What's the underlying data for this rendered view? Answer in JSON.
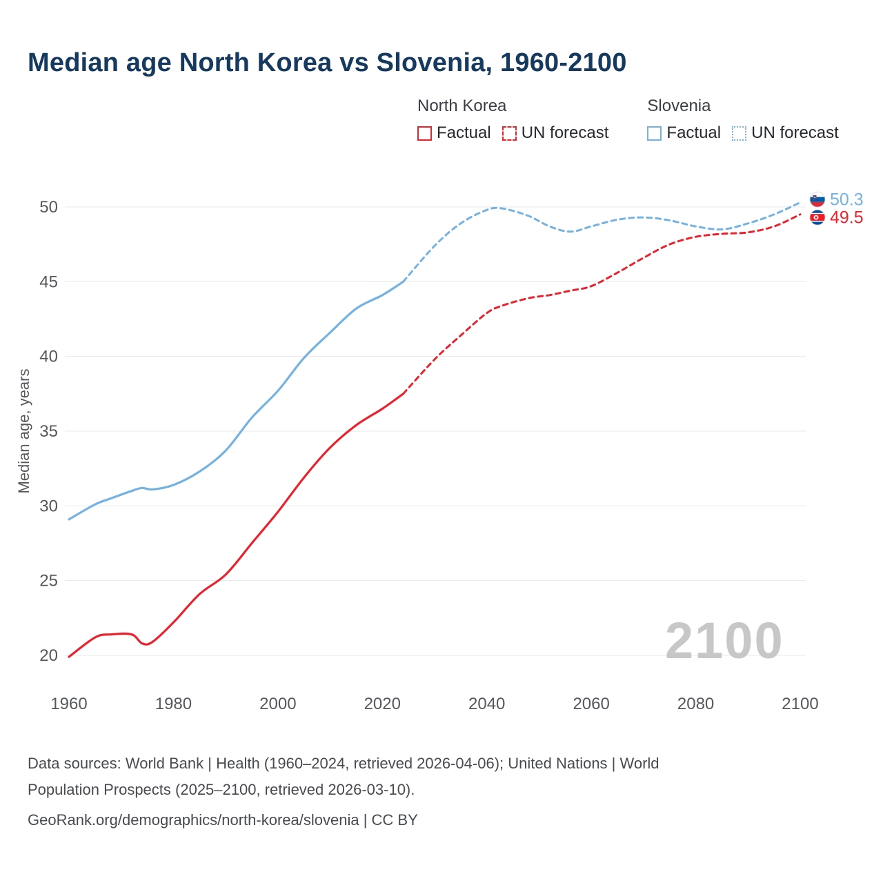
{
  "title": "Median age North Korea vs Slovenia, 1960-2100",
  "legend": {
    "groups": [
      {
        "name": "North Korea",
        "color": "#e8232d",
        "items": [
          {
            "label": "Factual",
            "style": "solid"
          },
          {
            "label": "UN forecast",
            "style": "dashed"
          }
        ]
      },
      {
        "name": "Slovenia",
        "color": "#74b2e2",
        "items": [
          {
            "label": "Factual",
            "style": "solid"
          },
          {
            "label": "UN forecast",
            "style": "dotted"
          }
        ]
      }
    ]
  },
  "watermark": "2100",
  "footer": {
    "line1": "Data sources: World Bank | Health (1960–2024, retrieved 2026-04-06); United Nations | World",
    "line2": "Population Prospects (2025–2100, retrieved 2026-03-10).",
    "line3": "GeoRank.org/demographics/north-korea/slovenia | CC BY"
  },
  "chart_data": {
    "type": "line",
    "title": "Median age North Korea vs Slovenia, 1960-2100",
    "xlabel": "",
    "ylabel": "Median age, years",
    "x_ticks": [
      1960,
      1980,
      2000,
      2020,
      2040,
      2060,
      2080,
      2100
    ],
    "y_ticks": [
      20,
      25,
      30,
      35,
      40,
      45,
      50
    ],
    "xlim": [
      1955,
      2112
    ],
    "ylim": [
      18.5,
      52
    ],
    "grid": "horizontal",
    "legend_position": "top-right",
    "forecast_start": 2024,
    "x": [
      1960,
      1965,
      1968,
      1972,
      1974,
      1976,
      1980,
      1985,
      1990,
      1995,
      2000,
      2005,
      2010,
      2015,
      2020,
      2024,
      2030,
      2035,
      2040,
      2043,
      2048,
      2052,
      2056,
      2060,
      2065,
      2070,
      2075,
      2080,
      2085,
      2090,
      2095,
      2100
    ],
    "series": [
      {
        "name": "North Korea",
        "color": "#e8232d",
        "flag": "north-korea-flag-icon",
        "end_label": "49.5",
        "values": [
          19.9,
          21.2,
          21.4,
          21.4,
          20.8,
          20.9,
          22.2,
          24.1,
          25.4,
          27.5,
          29.6,
          31.9,
          33.9,
          35.4,
          36.5,
          37.5,
          39.8,
          41.4,
          42.9,
          43.4,
          43.9,
          44.1,
          44.4,
          44.7,
          45.6,
          46.6,
          47.5,
          48.0,
          48.2,
          48.3,
          48.7,
          49.5
        ]
      },
      {
        "name": "Slovenia",
        "color": "#74b2e2",
        "flag": "slovenia-flag-icon",
        "end_label": "50.3",
        "values": [
          29.1,
          30.1,
          30.5,
          31.0,
          31.2,
          31.1,
          31.4,
          32.3,
          33.7,
          35.9,
          37.7,
          39.9,
          41.6,
          43.2,
          44.1,
          45.0,
          47.4,
          48.9,
          49.8,
          49.9,
          49.4,
          48.7,
          48.35,
          48.7,
          49.15,
          49.3,
          49.1,
          48.7,
          48.5,
          48.9,
          49.5,
          50.3
        ]
      }
    ]
  }
}
